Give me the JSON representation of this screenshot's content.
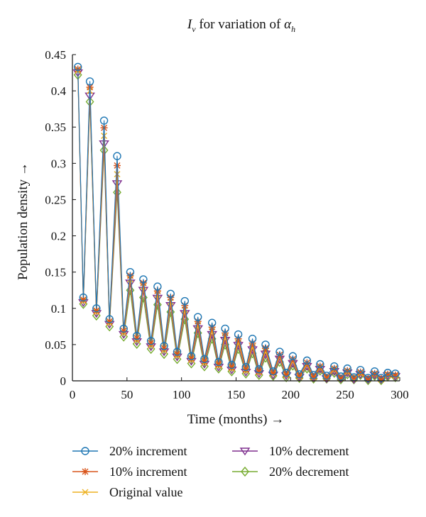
{
  "chart_data": {
    "type": "line",
    "title": {
      "symbol": "I",
      "subscript": "v",
      "text": " for variation of ",
      "param_symbol": "α",
      "param_subscript": "h"
    },
    "xlabel": "Time (months) →",
    "ylabel": "Population density →",
    "xlim": [
      0,
      300
    ],
    "ylim": [
      0,
      0.45
    ],
    "x_ticks": [
      "0",
      "50",
      "100",
      "150",
      "200",
      "250",
      "300"
    ],
    "y_ticks": [
      "0",
      "0.05",
      "0.1",
      "0.15",
      "0.2",
      "0.25",
      "0.3",
      "0.35",
      "0.4",
      "0.45"
    ],
    "grid": false,
    "legend_position": "bottom",
    "series": [
      {
        "name": "20% increment",
        "color": "#1f77b4",
        "marker": "circle",
        "x": [
          5,
          10,
          16,
          22,
          29,
          34,
          41,
          47,
          53,
          59,
          65,
          72,
          78,
          84,
          90,
          96,
          103,
          109,
          115,
          121,
          128,
          134,
          140,
          146,
          152,
          159,
          165,
          171,
          177,
          184,
          190,
          196,
          202,
          208,
          215,
          221,
          227,
          233,
          240,
          246,
          252,
          258,
          264,
          271,
          277,
          283,
          289,
          296
        ],
        "y": [
          0.433,
          0.115,
          0.413,
          0.1,
          0.359,
          0.085,
          0.31,
          0.072,
          0.15,
          0.062,
          0.14,
          0.055,
          0.13,
          0.048,
          0.12,
          0.04,
          0.11,
          0.034,
          0.088,
          0.03,
          0.08,
          0.026,
          0.072,
          0.022,
          0.064,
          0.019,
          0.058,
          0.016,
          0.05,
          0.013,
          0.04,
          0.011,
          0.034,
          0.009,
          0.028,
          0.008,
          0.023,
          0.007,
          0.02,
          0.006,
          0.017,
          0.005,
          0.015,
          0.004,
          0.013,
          0.004,
          0.011,
          0.01
        ]
      },
      {
        "name": "10% increment",
        "color": "#d9541a",
        "marker": "star",
        "x": [
          5,
          10,
          16,
          22,
          29,
          34,
          41,
          47,
          53,
          59,
          65,
          72,
          78,
          84,
          90,
          96,
          103,
          109,
          115,
          121,
          128,
          134,
          140,
          146,
          152,
          159,
          165,
          171,
          177,
          184,
          190,
          196,
          202,
          208,
          215,
          221,
          227,
          233,
          240,
          246,
          252,
          258,
          264,
          271,
          277,
          283,
          289,
          296
        ],
        "y": [
          0.43,
          0.112,
          0.405,
          0.097,
          0.349,
          0.082,
          0.297,
          0.069,
          0.145,
          0.059,
          0.135,
          0.052,
          0.124,
          0.045,
          0.115,
          0.037,
          0.104,
          0.031,
          0.082,
          0.027,
          0.074,
          0.023,
          0.066,
          0.019,
          0.058,
          0.016,
          0.052,
          0.013,
          0.045,
          0.011,
          0.036,
          0.009,
          0.03,
          0.007,
          0.025,
          0.006,
          0.02,
          0.005,
          0.017,
          0.004,
          0.014,
          0.004,
          0.012,
          0.003,
          0.01,
          0.003,
          0.009,
          0.008
        ]
      },
      {
        "name": "Original value",
        "color": "#edb120",
        "marker": "x",
        "x": [
          5,
          10,
          16,
          22,
          29,
          34,
          41,
          47,
          53,
          59,
          65,
          72,
          78,
          84,
          90,
          96,
          103,
          109,
          115,
          121,
          128,
          134,
          140,
          146,
          152,
          159,
          165,
          171,
          177,
          184,
          190,
          196,
          202,
          208,
          215,
          221,
          227,
          233,
          240,
          246,
          252,
          258,
          264,
          271,
          277,
          283,
          289,
          296
        ],
        "y": [
          0.428,
          0.11,
          0.4,
          0.095,
          0.338,
          0.08,
          0.285,
          0.066,
          0.14,
          0.056,
          0.13,
          0.049,
          0.119,
          0.042,
          0.109,
          0.035,
          0.098,
          0.029,
          0.077,
          0.025,
          0.069,
          0.021,
          0.061,
          0.017,
          0.053,
          0.014,
          0.047,
          0.012,
          0.041,
          0.01,
          0.033,
          0.008,
          0.027,
          0.006,
          0.022,
          0.005,
          0.018,
          0.004,
          0.015,
          0.004,
          0.012,
          0.003,
          0.01,
          0.003,
          0.009,
          0.002,
          0.008,
          0.007
        ]
      },
      {
        "name": "10% decrement",
        "color": "#7e2f8e",
        "marker": "triangle-down",
        "x": [
          5,
          10,
          16,
          22,
          29,
          34,
          41,
          47,
          53,
          59,
          65,
          72,
          78,
          84,
          90,
          96,
          103,
          109,
          115,
          121,
          128,
          134,
          140,
          146,
          152,
          159,
          165,
          171,
          177,
          184,
          190,
          196,
          202,
          208,
          215,
          221,
          227,
          233,
          240,
          246,
          252,
          258,
          264,
          271,
          277,
          283,
          289,
          296
        ],
        "y": [
          0.425,
          0.108,
          0.393,
          0.093,
          0.327,
          0.078,
          0.272,
          0.064,
          0.135,
          0.054,
          0.125,
          0.047,
          0.114,
          0.04,
          0.104,
          0.033,
          0.093,
          0.027,
          0.072,
          0.023,
          0.064,
          0.019,
          0.056,
          0.015,
          0.049,
          0.012,
          0.043,
          0.01,
          0.037,
          0.008,
          0.03,
          0.007,
          0.024,
          0.005,
          0.02,
          0.004,
          0.016,
          0.003,
          0.013,
          0.003,
          0.011,
          0.002,
          0.009,
          0.002,
          0.008,
          0.002,
          0.007,
          0.006
        ]
      },
      {
        "name": "20% decrement",
        "color": "#77ac30",
        "marker": "diamond",
        "x": [
          5,
          10,
          16,
          22,
          29,
          34,
          41,
          47,
          53,
          59,
          65,
          72,
          78,
          84,
          90,
          96,
          103,
          109,
          115,
          121,
          128,
          134,
          140,
          146,
          152,
          159,
          165,
          171,
          177,
          184,
          190,
          196,
          202,
          208,
          215,
          221,
          227,
          233,
          240,
          246,
          252,
          258,
          264,
          271,
          277,
          283,
          289,
          296
        ],
        "y": [
          0.422,
          0.106,
          0.385,
          0.09,
          0.318,
          0.075,
          0.26,
          0.061,
          0.125,
          0.051,
          0.115,
          0.044,
          0.105,
          0.037,
          0.095,
          0.03,
          0.085,
          0.024,
          0.066,
          0.02,
          0.058,
          0.017,
          0.05,
          0.013,
          0.044,
          0.01,
          0.038,
          0.008,
          0.032,
          0.007,
          0.026,
          0.005,
          0.021,
          0.004,
          0.017,
          0.003,
          0.014,
          0.003,
          0.011,
          0.002,
          0.009,
          0.002,
          0.008,
          0.001,
          0.007,
          0.001,
          0.006,
          0.005
        ]
      }
    ]
  }
}
